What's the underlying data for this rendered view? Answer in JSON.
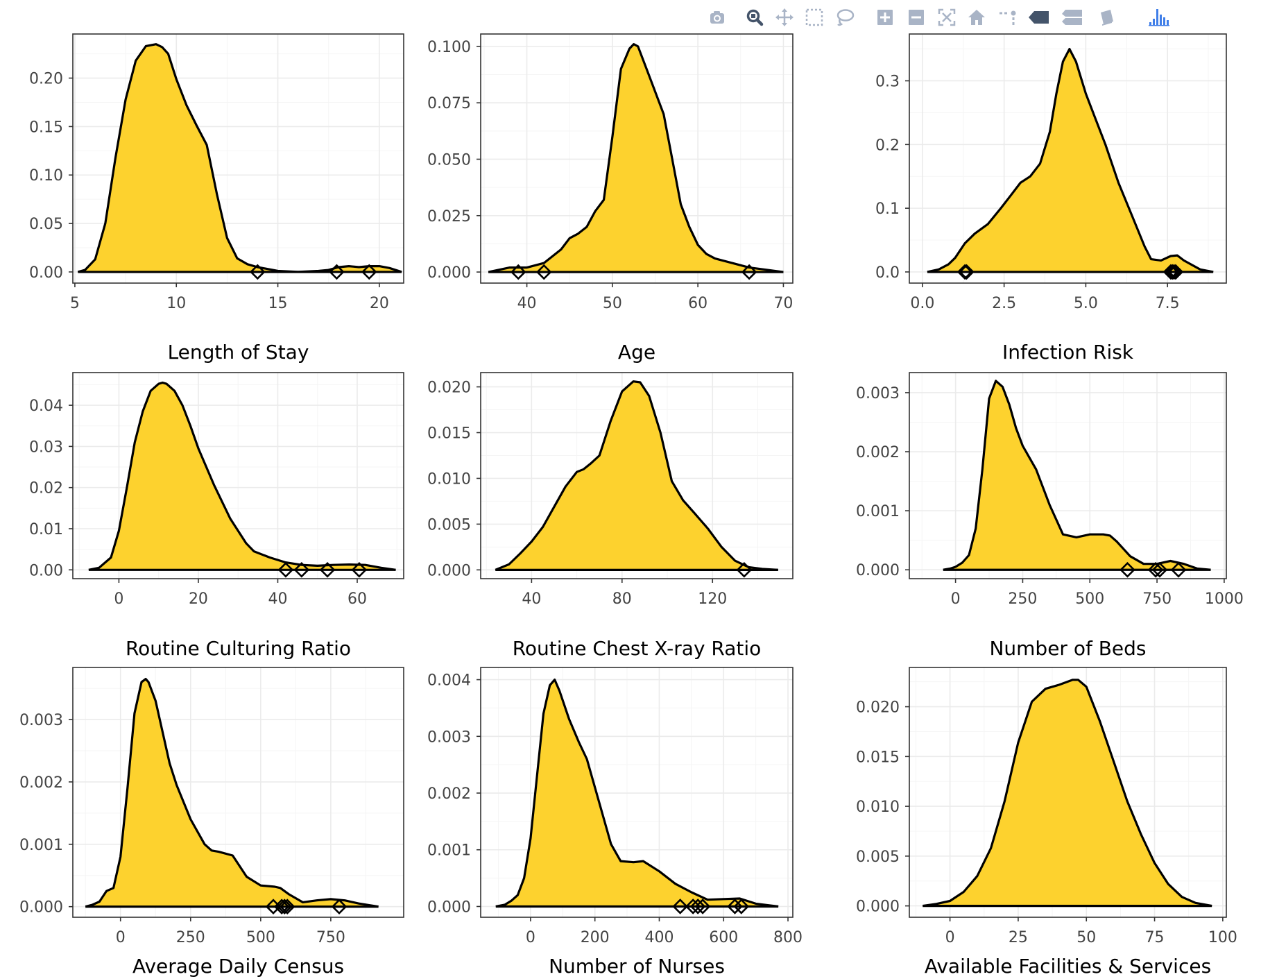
{
  "modebar": {
    "buttons": [
      {
        "name": "camera-icon",
        "label": "Download plot as a png"
      },
      {
        "name": "zoom-icon",
        "label": "Zoom"
      },
      {
        "name": "pan-icon",
        "label": "Pan"
      },
      {
        "name": "box-select-icon",
        "label": "Box Select"
      },
      {
        "name": "lasso-select-icon",
        "label": "Lasso Select"
      },
      {
        "name": "zoom-in-icon",
        "label": "Zoom in"
      },
      {
        "name": "zoom-out-icon",
        "label": "Zoom out"
      },
      {
        "name": "autoscale-icon",
        "label": "Autoscale"
      },
      {
        "name": "reset-axes-icon",
        "label": "Reset axes"
      },
      {
        "name": "toggle-spike-lines-icon",
        "label": "Toggle Spike Lines"
      },
      {
        "name": "hover-closest-icon",
        "label": "Show closest data on hover"
      },
      {
        "name": "hover-compare-icon",
        "label": "Compare data on hover"
      },
      {
        "name": "edit-chart-icon",
        "label": "Edit in Chart Studio"
      },
      {
        "name": "plotly-logo-icon",
        "label": "Produced with Plotly"
      }
    ]
  },
  "colors": {
    "fill": "#FDD22E",
    "line": "#000000",
    "grid": "#EBEBEB",
    "panel_border": "#333333",
    "tick_text": "#444444",
    "modebar_icon": "#A9B4C6",
    "modebar_active": "#44546A",
    "plotly_logo": "#3F7EE8"
  },
  "chart_data": [
    {
      "type": "area",
      "xlabel": "Length of Stay",
      "xlim": [
        4.9,
        21.2
      ],
      "ylim": [
        -0.0115,
        0.2455
      ],
      "xticks": [
        5,
        10,
        15,
        20
      ],
      "xtick_labels": [
        "5",
        "10",
        "15",
        "20"
      ],
      "yticks": [
        0,
        0.05,
        0.1,
        0.15,
        0.2
      ],
      "ytick_labels": [
        "0.00",
        "0.05",
        "0.10",
        "0.15",
        "0.20"
      ],
      "x": [
        5.15,
        5.5,
        6,
        6.5,
        7,
        7.5,
        8,
        8.5,
        9,
        9.3,
        9.6,
        10,
        10.5,
        11,
        11.5,
        12,
        12.5,
        13,
        13.5,
        14,
        14.5,
        15,
        16,
        17,
        17.5,
        18,
        18.5,
        19,
        19.5,
        20,
        20.5,
        21.1
      ],
      "y": [
        0,
        0.002,
        0.013,
        0.05,
        0.118,
        0.178,
        0.218,
        0.233,
        0.235,
        0.232,
        0.225,
        0.199,
        0.172,
        0.151,
        0.131,
        0.08,
        0.035,
        0.014,
        0.008,
        0.005,
        0.003,
        0.001,
        0,
        0.001,
        0.002,
        0.005,
        0.006,
        0.005,
        0.006,
        0.006,
        0.004,
        0
      ],
      "rug": [
        14.0,
        17.9,
        19.5
      ]
    },
    {
      "type": "area",
      "xlabel": "Age",
      "xlim": [
        34.6,
        71.1
      ],
      "ylim": [
        -0.0049,
        0.1055
      ],
      "xticks": [
        40,
        50,
        60,
        70
      ],
      "xtick_labels": [
        "40",
        "50",
        "60",
        "70"
      ],
      "yticks": [
        0,
        0.025,
        0.05,
        0.075,
        0.1
      ],
      "ytick_labels": [
        "0.000",
        "0.025",
        "0.050",
        "0.075",
        "0.100"
      ],
      "x": [
        35.5,
        38,
        40,
        42,
        44,
        45,
        46,
        47,
        48,
        49,
        50,
        51,
        52,
        52.5,
        53,
        54,
        55,
        56,
        57,
        58,
        59,
        60,
        61,
        62,
        63,
        64,
        65,
        66,
        68,
        70
      ],
      "y": [
        0,
        0.002,
        0.002,
        0.004,
        0.01,
        0.015,
        0.017,
        0.02,
        0.027,
        0.032,
        0.06,
        0.09,
        0.099,
        0.101,
        0.1,
        0.09,
        0.08,
        0.07,
        0.05,
        0.03,
        0.02,
        0.012,
        0.008,
        0.006,
        0.005,
        0.004,
        0.003,
        0.002,
        0.001,
        0
      ],
      "rug": [
        39.0,
        42.0,
        66.0
      ]
    },
    {
      "type": "area",
      "xlabel": "Infection Risk",
      "xlim": [
        -0.4,
        9.3
      ],
      "ylim": [
        -0.0175,
        0.3735
      ],
      "xticks": [
        0,
        2.5,
        5,
        7.5
      ],
      "xtick_labels": [
        "0.0",
        "2.5",
        "5.0",
        "7.5"
      ],
      "yticks": [
        0,
        0.1,
        0.2,
        0.3
      ],
      "ytick_labels": [
        "0.0",
        "0.1",
        "0.2",
        "0.3"
      ],
      "x": [
        0.15,
        0.5,
        0.8,
        1.0,
        1.3,
        1.6,
        2.0,
        2.4,
        2.7,
        3.0,
        3.3,
        3.6,
        3.9,
        4.1,
        4.3,
        4.5,
        4.7,
        5.0,
        5.3,
        5.6,
        6.0,
        6.4,
        6.8,
        7.0,
        7.3,
        7.6,
        7.8,
        8.0,
        8.5,
        8.9
      ],
      "y": [
        0,
        0.004,
        0.012,
        0.022,
        0.045,
        0.06,
        0.075,
        0.1,
        0.12,
        0.14,
        0.15,
        0.17,
        0.22,
        0.28,
        0.33,
        0.35,
        0.33,
        0.28,
        0.24,
        0.2,
        0.14,
        0.09,
        0.04,
        0.02,
        0.018,
        0.025,
        0.026,
        0.018,
        0.004,
        0
      ],
      "rug": [
        1.3,
        1.35,
        7.6,
        7.65,
        7.7,
        7.75
      ]
    },
    {
      "type": "area",
      "xlabel": "Routine Culturing Ratio",
      "xlim": [
        -11.6,
        71.7
      ],
      "ylim": [
        -0.00214,
        0.04794
      ],
      "xticks": [
        0,
        20,
        40,
        60
      ],
      "xtick_labels": [
        "0",
        "20",
        "40",
        "60"
      ],
      "yticks": [
        0,
        0.01,
        0.02,
        0.03,
        0.04
      ],
      "ytick_labels": [
        "0.00",
        "0.01",
        "0.02",
        "0.03",
        "0.04"
      ],
      "x": [
        -7.6,
        -5,
        -2,
        0,
        2,
        4,
        6,
        8,
        10,
        11,
        12,
        14,
        16,
        18,
        20,
        24,
        28,
        32,
        34,
        38,
        42,
        46,
        50,
        54,
        58,
        62,
        66,
        69.7
      ],
      "y": [
        0,
        0.0005,
        0.003,
        0.0095,
        0.02,
        0.031,
        0.0385,
        0.0435,
        0.0452,
        0.0455,
        0.0452,
        0.0435,
        0.04,
        0.035,
        0.0295,
        0.0205,
        0.0125,
        0.0065,
        0.0045,
        0.003,
        0.0018,
        0.0012,
        0.001,
        0.0012,
        0.0013,
        0.0012,
        0.0005,
        0
      ],
      "rug": [
        42.0,
        46.0,
        52.5,
        60.5
      ]
    },
    {
      "type": "area",
      "xlabel": "Routine Chest X-ray Ratio",
      "xlim": [
        17.5,
        155.5
      ],
      "ylim": [
        -0.00096,
        0.02156
      ],
      "xticks": [
        40,
        80,
        120
      ],
      "xtick_labels": [
        "40",
        "80",
        "120"
      ],
      "yticks": [
        0,
        0.005,
        0.01,
        0.015,
        0.02
      ],
      "ytick_labels": [
        "0.000",
        "0.005",
        "0.010",
        "0.015",
        "0.020"
      ],
      "x": [
        24,
        30,
        35,
        40,
        45,
        50,
        55,
        60,
        63,
        66,
        70,
        75,
        80,
        85,
        88,
        92,
        97,
        102,
        107,
        112,
        118,
        124,
        130,
        136,
        142,
        149
      ],
      "y": [
        0,
        0.0006,
        0.0018,
        0.0031,
        0.0047,
        0.0069,
        0.0091,
        0.0107,
        0.011,
        0.0116,
        0.0125,
        0.0163,
        0.0195,
        0.0206,
        0.0205,
        0.019,
        0.015,
        0.0097,
        0.0076,
        0.0062,
        0.0045,
        0.0025,
        0.001,
        0.0003,
        0.0001,
        0
      ],
      "rug": [
        134.0
      ]
    },
    {
      "type": "area",
      "xlabel": "Number of Beds",
      "xlim": [
        -172,
        1008
      ],
      "ylim": [
        -0.00015,
        0.00334
      ],
      "xticks": [
        0,
        250,
        500,
        750,
        1000
      ],
      "xtick_labels": [
        "0",
        "250",
        "500",
        "750",
        "1000"
      ],
      "yticks": [
        0,
        0.001,
        0.002,
        0.003
      ],
      "ytick_labels": [
        "0.000",
        "0.001",
        "0.002",
        "0.003"
      ],
      "x": [
        -46,
        -20,
        0,
        25,
        50,
        75,
        100,
        125,
        150,
        175,
        200,
        225,
        250,
        300,
        350,
        400,
        450,
        500,
        550,
        575,
        600,
        650,
        700,
        750,
        800,
        850,
        900,
        950
      ],
      "y": [
        0,
        2e-05,
        5e-05,
        0.00012,
        0.00025,
        0.0007,
        0.0017,
        0.0029,
        0.0032,
        0.0031,
        0.0028,
        0.0024,
        0.0021,
        0.0017,
        0.0011,
        0.0006,
        0.00055,
        0.0006,
        0.0006,
        0.00058,
        0.00048,
        0.00023,
        0.0001,
        0.0001,
        0.00015,
        0.0001,
        2e-05,
        0
      ],
      "rug": [
        640,
        745,
        760,
        830
      ]
    },
    {
      "type": "area",
      "xlabel": "Average Daily Census",
      "xlim": [
        -170,
        1010
      ],
      "ylim": [
        -0.00017,
        0.003835
      ],
      "xticks": [
        0,
        250,
        500,
        750
      ],
      "xtick_labels": [
        "0",
        "250",
        "500",
        "750"
      ],
      "yticks": [
        0,
        0.001,
        0.002,
        0.003
      ],
      "ytick_labels": [
        "0.000",
        "0.001",
        "0.002",
        "0.003"
      ],
      "x": [
        -125,
        -100,
        -75,
        -50,
        -25,
        0,
        25,
        50,
        75,
        90,
        100,
        125,
        150,
        175,
        200,
        250,
        300,
        325,
        350,
        400,
        450,
        500,
        550,
        570,
        600,
        650,
        700,
        750,
        800,
        850,
        920
      ],
      "y": [
        0,
        3e-05,
        8e-05,
        0.00025,
        0.0003,
        0.0008,
        0.0019,
        0.0031,
        0.0036,
        0.00365,
        0.0036,
        0.0033,
        0.0028,
        0.0023,
        0.00195,
        0.0014,
        0.001,
        0.0009,
        0.00088,
        0.00082,
        0.00048,
        0.00034,
        0.00032,
        0.0003,
        0.0002,
        7e-05,
        0.0001,
        0.00012,
        0.0001,
        5e-05,
        0
      ],
      "rug": [
        545,
        575,
        585,
        595,
        780
      ]
    },
    {
      "type": "area",
      "xlabel": "Number of Nurses",
      "xlim": [
        -155,
        815
      ],
      "ylim": [
        -0.00019,
        0.004215
      ],
      "xticks": [
        0,
        200,
        400,
        600,
        800
      ],
      "xtick_labels": [
        "0",
        "200",
        "400",
        "600",
        "800"
      ],
      "yticks": [
        0,
        0.001,
        0.002,
        0.003,
        0.004
      ],
      "ytick_labels": [
        "0.000",
        "0.001",
        "0.002",
        "0.003",
        "0.004"
      ],
      "x": [
        -108,
        -80,
        -60,
        -40,
        -20,
        0,
        20,
        40,
        60,
        75,
        90,
        120,
        150,
        175,
        200,
        250,
        280,
        320,
        350,
        400,
        450,
        500,
        550,
        600,
        650,
        700,
        770
      ],
      "y": [
        0,
        3e-05,
        0.0001,
        0.0002,
        0.0005,
        0.0012,
        0.0023,
        0.0034,
        0.0039,
        0.004,
        0.0038,
        0.0033,
        0.0029,
        0.0026,
        0.0021,
        0.0011,
        0.0008,
        0.00078,
        0.0008,
        0.00062,
        0.0004,
        0.00025,
        0.00012,
        0.00013,
        0.00014,
        5e-05,
        0
      ],
      "rug": [
        465,
        505,
        520,
        535,
        635,
        655
      ]
    },
    {
      "type": "area",
      "xlabel": "Available Facilities & Services",
      "xlim": [
        -14.9,
        101.3
      ],
      "ylim": [
        -0.00114,
        0.02394
      ],
      "xticks": [
        0,
        25,
        50,
        75,
        100
      ],
      "xtick_labels": [
        "0",
        "25",
        "50",
        "75",
        "100"
      ],
      "yticks": [
        0,
        0.005,
        0.01,
        0.015,
        0.02
      ],
      "ytick_labels": [
        "0.000",
        "0.005",
        "0.010",
        "0.015",
        "0.020"
      ],
      "x": [
        -10,
        -5,
        0,
        5,
        10,
        15,
        20,
        25,
        30,
        35,
        40,
        45,
        47,
        50,
        55,
        60,
        65,
        70,
        75,
        80,
        85,
        90,
        96
      ],
      "y": [
        0,
        0.0002,
        0.0005,
        0.0014,
        0.003,
        0.0058,
        0.0105,
        0.0164,
        0.0205,
        0.0218,
        0.0222,
        0.0227,
        0.0227,
        0.022,
        0.0185,
        0.0145,
        0.0105,
        0.0072,
        0.0043,
        0.0022,
        0.0009,
        0.0003,
        0
      ],
      "rug": []
    }
  ]
}
